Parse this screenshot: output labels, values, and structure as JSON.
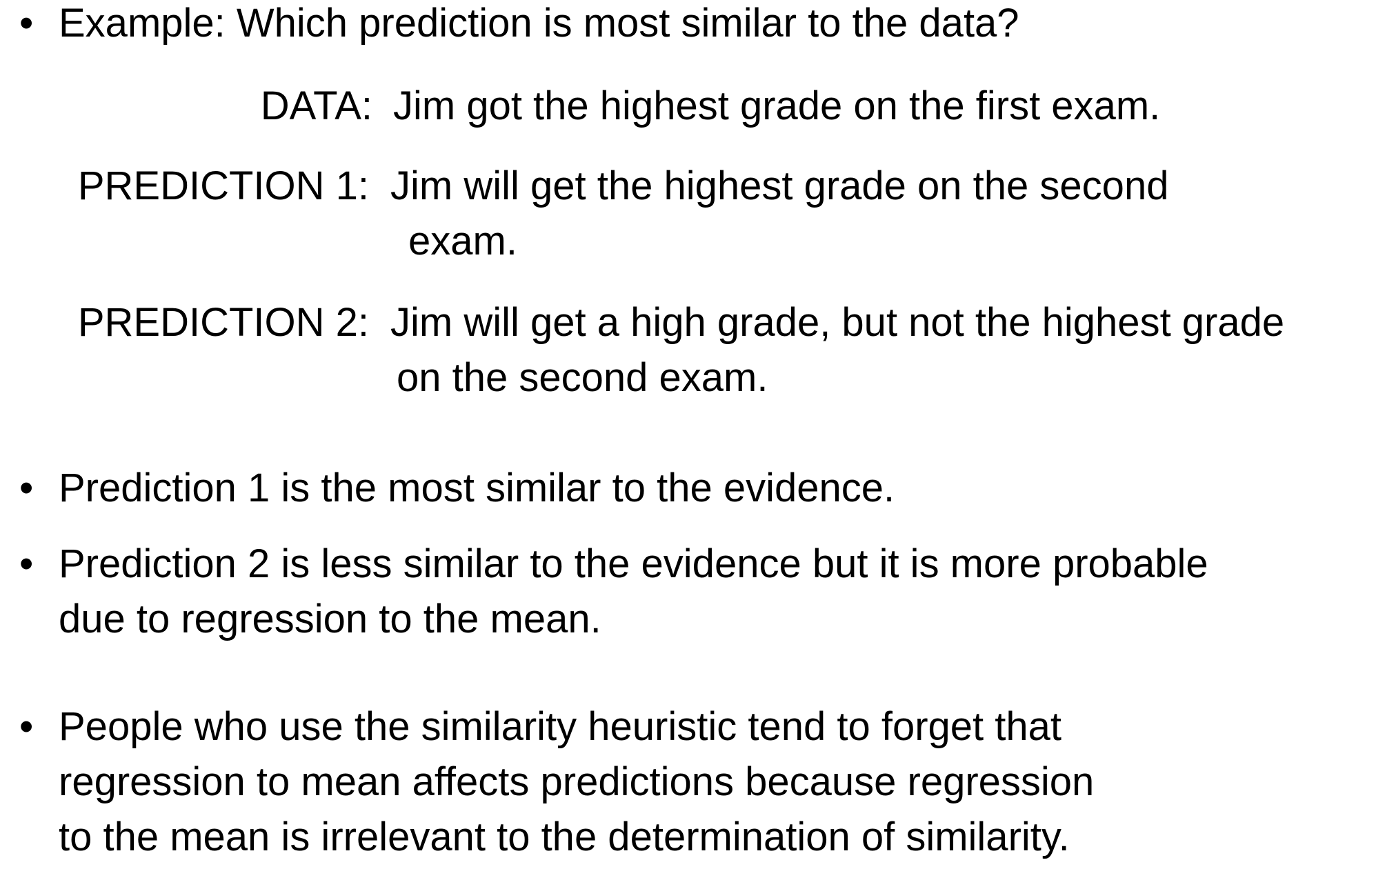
{
  "bullet_glyph": "•",
  "example": {
    "text": "Example:  Which prediction is most similar to the data?",
    "data_label": "DATA:",
    "data_text": "Jim got the highest grade on the first exam.",
    "prediction1_label": "PREDICTION 1:",
    "prediction1_line1": "Jim will get the highest grade on the second",
    "prediction1_line2": "exam.",
    "prediction2_label": "PREDICTION 2:",
    "prediction2_line1": "Jim will get a high grade, but not the highest grade",
    "prediction2_line2": "on the second exam."
  },
  "bullets": [
    {
      "lines": [
        "Prediction 1 is the most similar to the evidence."
      ]
    },
    {
      "lines": [
        "Prediction 2 is less similar to the evidence but it is more probable",
        "due to regression to the mean."
      ]
    },
    {
      "lines": [
        "People who use the similarity heuristic tend to forget that",
        "regression to mean affects predictions because regression",
        "to the mean is irrelevant to the determination of similarity."
      ]
    }
  ]
}
